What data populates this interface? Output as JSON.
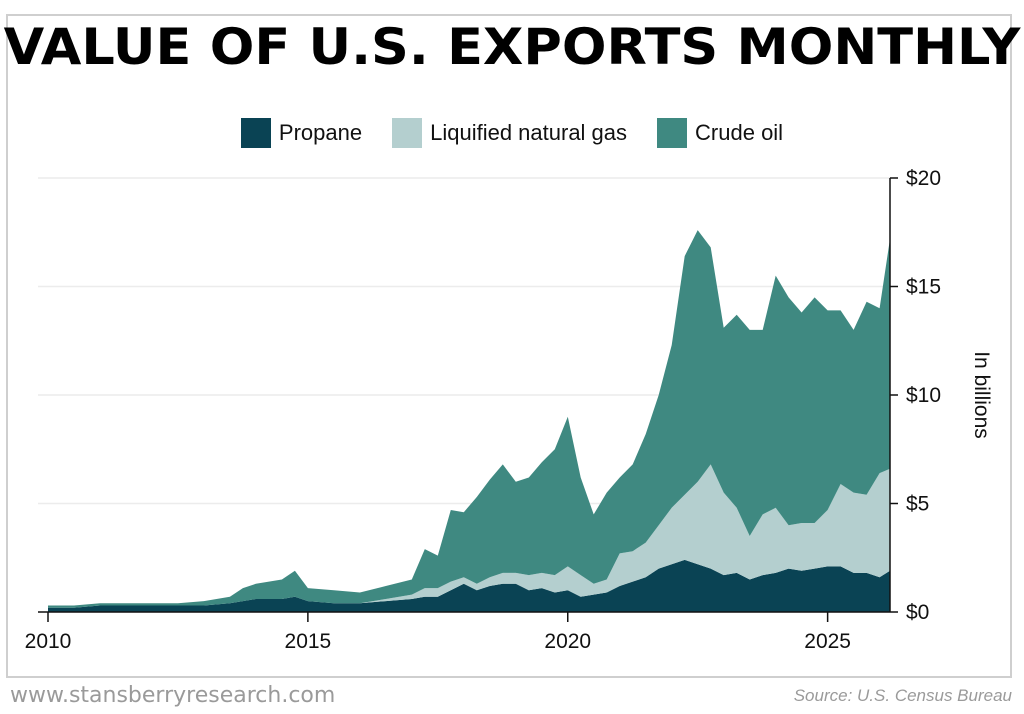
{
  "title": "VALUE OF U.S. EXPORTS MONTHLY",
  "footer": {
    "website": "www.stansberryresearch.com",
    "source": "Source: U.S. Census Bureau"
  },
  "chart_data": {
    "type": "area",
    "stacked": true,
    "ylabel": "In billions",
    "ylim": [
      0,
      20
    ],
    "yticks": [
      {
        "value": 0,
        "label": "$0"
      },
      {
        "value": 5,
        "label": "$5"
      },
      {
        "value": 10,
        "label": "$10"
      },
      {
        "value": 15,
        "label": "$15"
      },
      {
        "value": 20,
        "label": "$20"
      }
    ],
    "xlim": [
      2010,
      2026.2
    ],
    "xticks": [
      {
        "value": 2010,
        "label": "2010"
      },
      {
        "value": 2015,
        "label": "2015"
      },
      {
        "value": 2020,
        "label": "2020"
      },
      {
        "value": 2025,
        "label": "2025"
      }
    ],
    "grid": true,
    "legend_position": "top-center",
    "x": [
      2010.0,
      2010.5,
      2011.0,
      2011.5,
      2012.0,
      2012.5,
      2013.0,
      2013.5,
      2013.75,
      2014.0,
      2014.5,
      2014.75,
      2015.0,
      2015.5,
      2016.0,
      2016.5,
      2017.0,
      2017.25,
      2017.5,
      2017.75,
      2018.0,
      2018.25,
      2018.5,
      2018.75,
      2019.0,
      2019.25,
      2019.5,
      2019.75,
      2020.0,
      2020.25,
      2020.5,
      2020.75,
      2021.0,
      2021.25,
      2021.5,
      2021.75,
      2022.0,
      2022.25,
      2022.5,
      2022.75,
      2023.0,
      2023.25,
      2023.5,
      2023.75,
      2024.0,
      2024.25,
      2024.5,
      2024.75,
      2025.0,
      2025.25,
      2025.5,
      2025.75,
      2026.0,
      2026.2
    ],
    "series": [
      {
        "name": "Propane",
        "color": "#0a4354",
        "values": [
          0.2,
          0.2,
          0.3,
          0.3,
          0.3,
          0.3,
          0.3,
          0.4,
          0.5,
          0.6,
          0.6,
          0.7,
          0.5,
          0.4,
          0.4,
          0.5,
          0.6,
          0.7,
          0.7,
          1.0,
          1.3,
          1.0,
          1.2,
          1.3,
          1.3,
          1.0,
          1.1,
          0.9,
          1.0,
          0.7,
          0.8,
          0.9,
          1.2,
          1.4,
          1.6,
          2.0,
          2.2,
          2.4,
          2.2,
          2.0,
          1.7,
          1.8,
          1.5,
          1.7,
          1.8,
          2.0,
          1.9,
          2.0,
          2.1,
          2.1,
          1.8,
          1.8,
          1.6,
          1.9
        ]
      },
      {
        "name": "Liquified natural gas",
        "color": "#b4cfcf",
        "values": [
          0.0,
          0.0,
          0.0,
          0.0,
          0.0,
          0.0,
          0.0,
          0.0,
          0.0,
          0.0,
          0.0,
          0.0,
          0.0,
          0.0,
          0.0,
          0.1,
          0.2,
          0.4,
          0.4,
          0.4,
          0.3,
          0.3,
          0.4,
          0.5,
          0.5,
          0.7,
          0.7,
          0.8,
          1.1,
          1.0,
          0.5,
          0.6,
          1.5,
          1.4,
          1.6,
          2.0,
          2.6,
          3.0,
          3.8,
          4.8,
          3.8,
          3.0,
          2.0,
          2.8,
          3.0,
          2.0,
          2.2,
          2.1,
          2.6,
          3.8,
          3.7,
          3.6,
          4.8,
          4.7
        ]
      },
      {
        "name": "Crude oil",
        "color": "#3f8981",
        "values": [
          0.1,
          0.1,
          0.1,
          0.1,
          0.1,
          0.1,
          0.2,
          0.3,
          0.6,
          0.7,
          0.9,
          1.2,
          0.6,
          0.6,
          0.5,
          0.6,
          0.7,
          1.8,
          1.5,
          3.3,
          3.0,
          4.0,
          4.5,
          5.0,
          4.2,
          4.5,
          5.1,
          5.8,
          6.9,
          4.5,
          3.2,
          4.0,
          3.5,
          4.0,
          5.0,
          6.0,
          7.5,
          11.0,
          11.6,
          10.0,
          7.6,
          8.9,
          9.5,
          8.5,
          10.7,
          10.5,
          9.7,
          10.4,
          9.2,
          8.0,
          7.5,
          8.9,
          7.6,
          10.6
        ]
      }
    ]
  }
}
